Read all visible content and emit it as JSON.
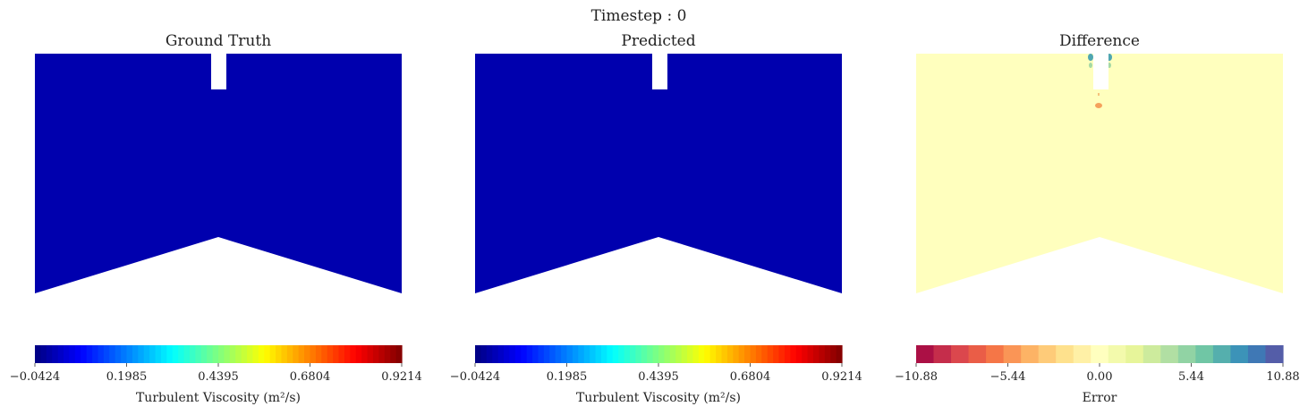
{
  "figure": {
    "title": "Timestep : 0"
  },
  "chart_data": [
    {
      "type": "heatmap",
      "title": "Ground Truth",
      "field": "uniform",
      "field_value": -0.0424,
      "colormap": "jet",
      "colorbar": {
        "label": "Turbulent Viscosity (m²/s)",
        "range": [
          -0.0424,
          0.9214
        ],
        "ticks": [
          "−0.0424",
          "0.1985",
          "0.4395",
          "0.6804",
          "0.9214"
        ],
        "n_levels": 64
      },
      "colors": {
        "field_fill": "#0000AE"
      }
    },
    {
      "type": "heatmap",
      "title": "Predicted",
      "field": "uniform",
      "field_value": -0.0424,
      "colormap": "jet",
      "colorbar": {
        "label": "Turbulent Viscosity (m²/s)",
        "range": [
          -0.0424,
          0.9214
        ],
        "ticks": [
          "−0.0424",
          "0.1985",
          "0.4395",
          "0.6804",
          "0.9214"
        ],
        "n_levels": 64
      },
      "colors": {
        "field_fill": "#0000AE"
      }
    },
    {
      "type": "heatmap",
      "title": "Difference",
      "field": "uniform",
      "field_value": 0.0,
      "colormap": "spectral",
      "colorbar": {
        "label": "Error",
        "range": [
          -10.88,
          10.88
        ],
        "ticks": [
          "−10.88",
          "−5.44",
          "0.00",
          "5.44",
          "10.88"
        ],
        "n_levels": 21
      },
      "colors": {
        "field_fill": "#FFFFBE"
      }
    }
  ]
}
